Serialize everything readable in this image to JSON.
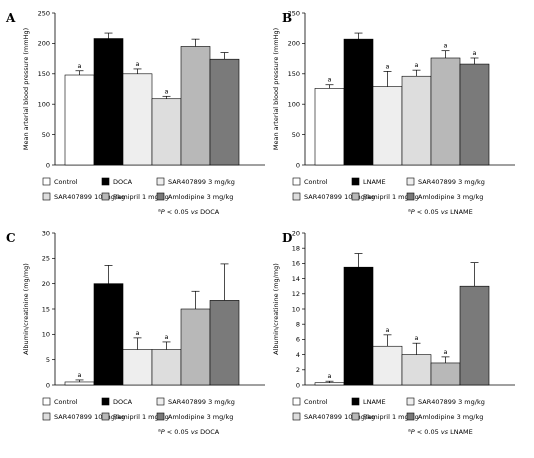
{
  "colors": {
    "Control": "#ffffff",
    "DOCA": "#000000",
    "LNAME": "#000000",
    "SAR407899 3 mg/kg": "#eeeeee",
    "SAR407899 10 mg/kg": "#dddddd",
    "Ramipril 1 mg/kg": "#b8b8b8",
    "Amlodipine 3 mg/kg": "#7a7a7a"
  },
  "chart_data": [
    {
      "panel": "A",
      "type": "bar",
      "ylabel": "Mean arterial blood pressure (mmHg)",
      "ylim": [
        0,
        250
      ],
      "yticks": [
        0,
        50,
        100,
        150,
        200,
        250
      ],
      "categories": [
        "Control",
        "DOCA",
        "SAR407899 3 mg/kg",
        "SAR407899 10 mg/kg",
        "Ramipril 1 mg/kg",
        "Amlodipine 3 mg/kg"
      ],
      "values": [
        148,
        208,
        150,
        109,
        195,
        174
      ],
      "errors": [
        7,
        9,
        8,
        4,
        12,
        11
      ],
      "significance": [
        "a",
        "",
        "a",
        "a",
        "",
        ""
      ],
      "legend": {
        "items": [
          "Control",
          "DOCA",
          "SAR407899 3 mg/kg",
          "SAR407899 10 mg/kg",
          "Ramipril 1 mg/kg",
          "Amlodipine 3 mg/kg"
        ],
        "note_sup": "a",
        "note_pre": "P",
        "note_text": " < 0.05 ",
        "note_vs": "vs",
        "note_ref": " DOCA"
      }
    },
    {
      "panel": "B",
      "type": "bar",
      "ylabel": "Mean arterial blood pressure (mmHg)",
      "ylim": [
        0,
        250
      ],
      "yticks": [
        0,
        50,
        100,
        150,
        200,
        250
      ],
      "categories": [
        "Control",
        "LNAME",
        "SAR407899 3 mg/kg",
        "SAR407899 10 mg/kg",
        "Ramipril 1 mg/kg",
        "Amlodipine 3 mg/kg"
      ],
      "values": [
        126,
        207,
        129,
        146,
        176,
        166
      ],
      "errors": [
        6,
        10,
        25,
        10,
        12,
        10
      ],
      "significance": [
        "a",
        "",
        "a",
        "a",
        "a",
        "a"
      ],
      "legend": {
        "items": [
          "Control",
          "LNAME",
          "SAR407899 3 mg/kg",
          "SAR407899 10 mg/kg",
          "Ramipril 1 mg/kg",
          "Amlodipine 3 mg/kg"
        ],
        "note_sup": "a",
        "note_pre": "P",
        "note_text": " < 0.05 ",
        "note_vs": "vs",
        "note_ref": " LNAME"
      }
    },
    {
      "panel": "C",
      "type": "bar",
      "ylabel": "Albumin/creatinine (mg/mg)",
      "ylim": [
        0,
        30
      ],
      "yticks": [
        0,
        5,
        10,
        15,
        20,
        25,
        30
      ],
      "categories": [
        "Control",
        "DOCA",
        "SAR407899 3 mg/kg",
        "SAR407899 10 mg/kg",
        "Ramipril 1 mg/kg",
        "Amlodipine 3 mg/kg"
      ],
      "values": [
        0.6,
        20,
        7,
        7,
        15,
        16.7
      ],
      "errors": [
        0.4,
        3.6,
        2.3,
        1.5,
        3.5,
        7.2
      ],
      "significance": [
        "a",
        "",
        "a",
        "a",
        "",
        ""
      ],
      "legend": {
        "items": [
          "Control",
          "DOCA",
          "SAR407899 3 mg/kg",
          "SAR407899 10 mg/kg",
          "Ramipril 1 mg/kg",
          "Amlodipine 3 mg/kg"
        ],
        "note_sup": "a",
        "note_pre": "P",
        "note_text": " < 0.05 ",
        "note_vs": "vs",
        "note_ref": " DOCA"
      }
    },
    {
      "panel": "D",
      "type": "bar",
      "ylabel": "Albumin/creatinine (mg/mg)",
      "ylim": [
        0,
        20
      ],
      "yticks": [
        0,
        2,
        4,
        6,
        8,
        10,
        12,
        14,
        16,
        18,
        20
      ],
      "categories": [
        "Control",
        "LNAME",
        "SAR407899 3 mg/kg",
        "SAR407899 10 mg/kg",
        "Ramipril 1 mg/kg",
        "Amlodipine 3 mg/kg"
      ],
      "values": [
        0.3,
        15.5,
        5.1,
        4.0,
        2.9,
        13.0
      ],
      "errors": [
        0.2,
        1.8,
        1.5,
        1.5,
        0.8,
        3.1
      ],
      "significance": [
        "a",
        "",
        "a",
        "a",
        "a",
        ""
      ],
      "legend": {
        "items": [
          "Control",
          "LNAME",
          "SAR407899 3 mg/kg",
          "SAR407899 10 mg/kg",
          "Ramipril 1 mg/kg",
          "Amlodipine 3 mg/kg"
        ],
        "note_sup": "a",
        "note_pre": "P",
        "note_text": " < 0.05 ",
        "note_vs": "vs",
        "note_ref": " LNAME"
      }
    }
  ]
}
